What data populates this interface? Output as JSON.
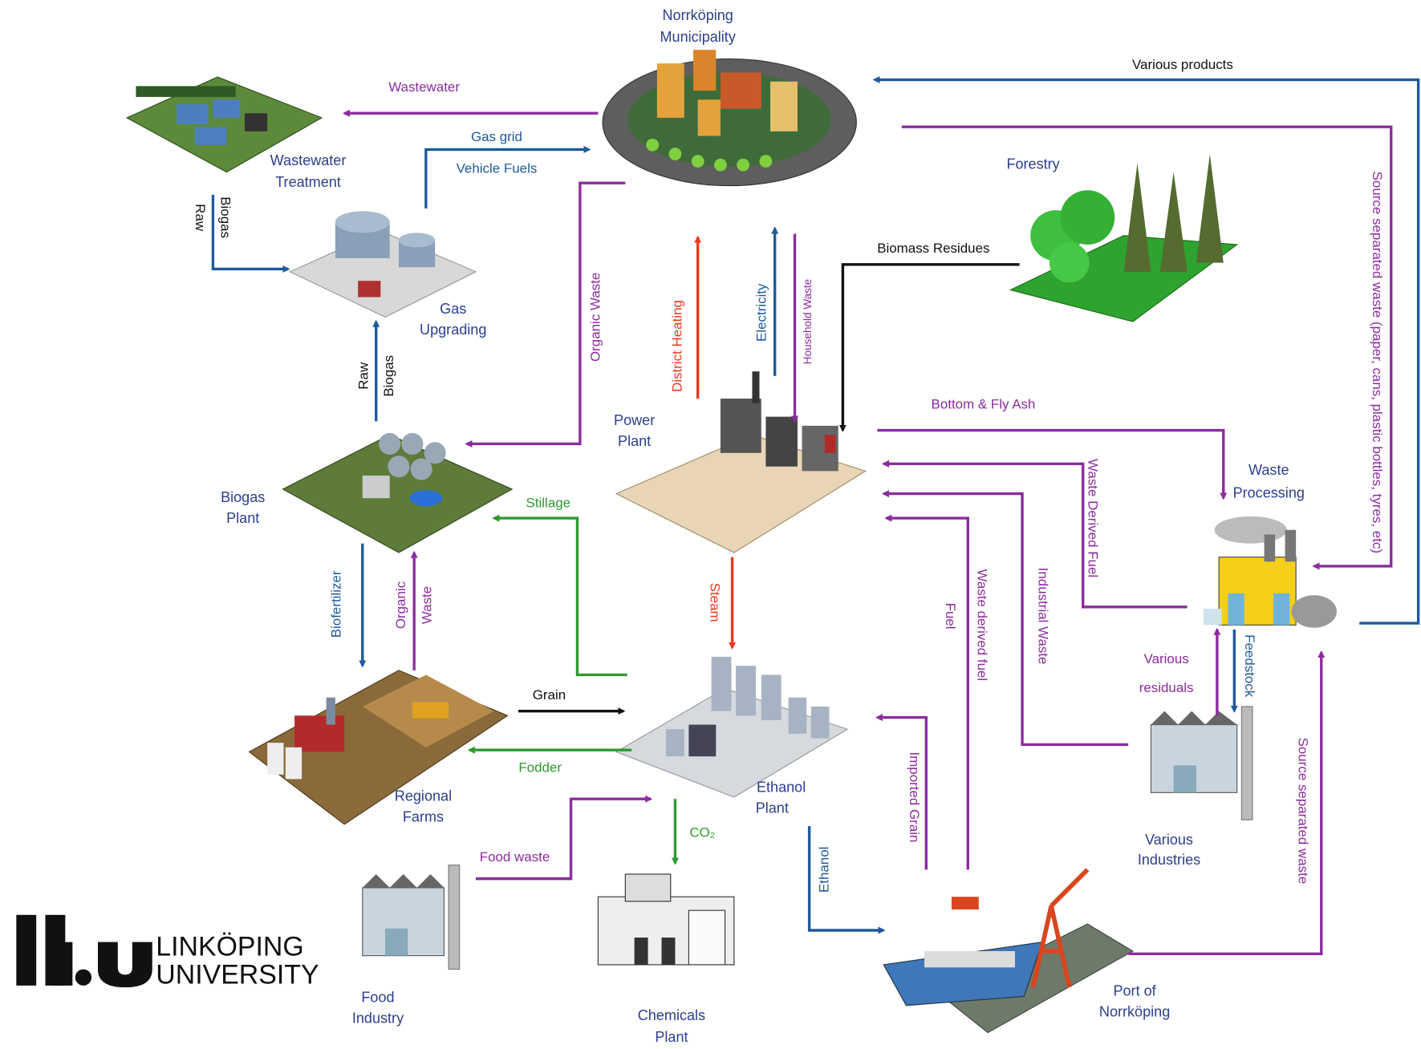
{
  "nodes": [
    {
      "lines": [
        "Norrköping",
        "Municipality"
      ]
    },
    {
      "lines": [
        "Wastewater",
        "Treatment"
      ]
    },
    {
      "lines": [
        "Gas",
        "Upgrading"
      ]
    },
    {
      "lines": [
        "Forestry"
      ]
    },
    {
      "lines": [
        "Biogas",
        "Plant"
      ]
    },
    {
      "lines": [
        "Power",
        "Plant"
      ]
    },
    {
      "lines": [
        "Waste",
        "Processing"
      ]
    },
    {
      "lines": [
        "Regional",
        "Farms"
      ]
    },
    {
      "lines": [
        "Ethanol",
        "Plant"
      ]
    },
    {
      "lines": [
        "Various",
        "Industries"
      ]
    },
    {
      "lines": [
        "Food",
        "Industry"
      ]
    },
    {
      "lines": [
        "Chemicals",
        "Plant"
      ]
    },
    {
      "lines": [
        "Port of",
        "Norrköping"
      ]
    }
  ],
  "edges": [
    {
      "labels": [
        "Wastewater"
      ]
    },
    {
      "labels": [
        "Gas grid",
        "Vehicle Fuels"
      ]
    },
    {
      "labels": [
        "Raw",
        "Biogas"
      ]
    },
    {
      "labels": [
        "Raw",
        "Biogas"
      ]
    },
    {
      "labels": [
        "Organic Waste"
      ]
    },
    {
      "labels": [
        "District Heating"
      ]
    },
    {
      "labels": [
        "Electricity"
      ]
    },
    {
      "labels": [
        "Household Waste"
      ]
    },
    {
      "labels": [
        "Biomass Residues"
      ]
    },
    {
      "labels": [
        "Various products"
      ]
    },
    {
      "labels": [
        "Source separated waste (paper, cans, plastic bottles, tyres, etc)"
      ]
    },
    {
      "labels": [
        "Bottom & Fly Ash"
      ]
    },
    {
      "labels": [
        "Waste Derived Fuel"
      ]
    },
    {
      "labels": [
        "Industrial Waste"
      ]
    },
    {
      "labels": [
        "Waste derived fuel",
        "Fuel"
      ]
    },
    {
      "labels": [
        "Stillage"
      ]
    },
    {
      "labels": [
        "Steam"
      ]
    },
    {
      "labels": [
        "Biofertilizer"
      ]
    },
    {
      "labels": [
        "Organic",
        "Waste"
      ]
    },
    {
      "labels": [
        "Grain"
      ]
    },
    {
      "labels": [
        "Fodder"
      ]
    },
    {
      "labels": [
        "Food waste"
      ]
    },
    {
      "labels": [
        "CO₂"
      ]
    },
    {
      "labels": [
        "Ethanol"
      ]
    },
    {
      "labels": [
        "Imported Grain"
      ]
    },
    {
      "labels": [
        "Various",
        "residuals"
      ]
    },
    {
      "labels": [
        "Feedstock"
      ]
    },
    {
      "labels": [
        "Source separated waste"
      ]
    }
  ],
  "logo": {
    "lines": [
      "LINKÖPING",
      "UNIVERSITY"
    ]
  }
}
